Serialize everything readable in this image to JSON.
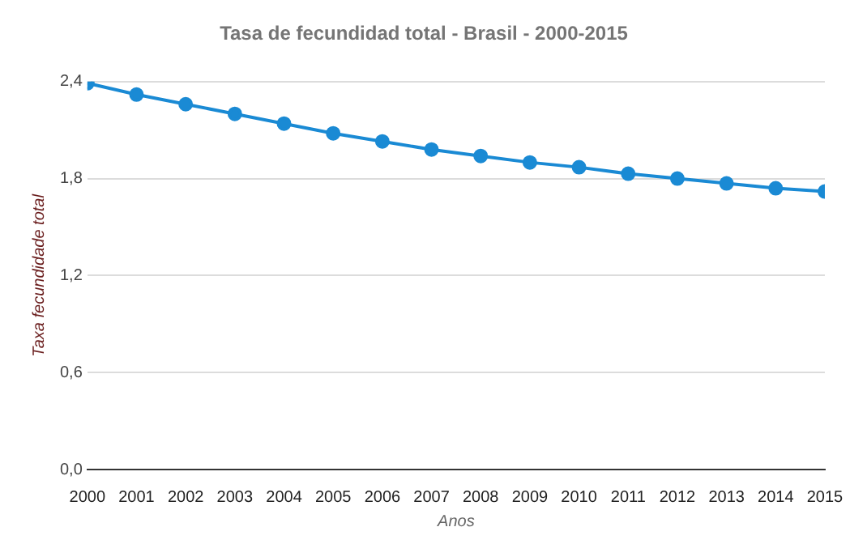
{
  "chart_data": {
    "type": "line",
    "title": "Tasa de fecundidad total - Brasil - 2000-2015",
    "xlabel": "Anos",
    "ylabel": "Taxa fecundidade total",
    "x": [
      2000,
      2001,
      2002,
      2003,
      2004,
      2005,
      2006,
      2007,
      2008,
      2009,
      2010,
      2011,
      2012,
      2013,
      2014,
      2015
    ],
    "series": [
      {
        "color": "#1a8ad4",
        "values": [
          2.39,
          2.32,
          2.26,
          2.2,
          2.14,
          2.08,
          2.03,
          1.98,
          1.94,
          1.9,
          1.87,
          1.83,
          1.8,
          1.77,
          1.74,
          1.72
        ]
      }
    ],
    "xlim": [
      2000,
      2015
    ],
    "xticks": [
      2000,
      2001,
      2002,
      2003,
      2004,
      2005,
      2006,
      2007,
      2008,
      2009,
      2010,
      2011,
      2012,
      2013,
      2014,
      2015
    ],
    "ylim": [
      0,
      2.4
    ],
    "yticks": [
      {
        "value": 0,
        "label": "0,0"
      },
      {
        "value": 0.6,
        "label": "0,6"
      },
      {
        "value": 1.2,
        "label": "1,2"
      },
      {
        "value": 1.8,
        "label": "1,8"
      },
      {
        "value": 2.4,
        "label": "2,4"
      }
    ],
    "grid": "y",
    "marker": "circle",
    "line_style": "solid",
    "legend": false
  }
}
